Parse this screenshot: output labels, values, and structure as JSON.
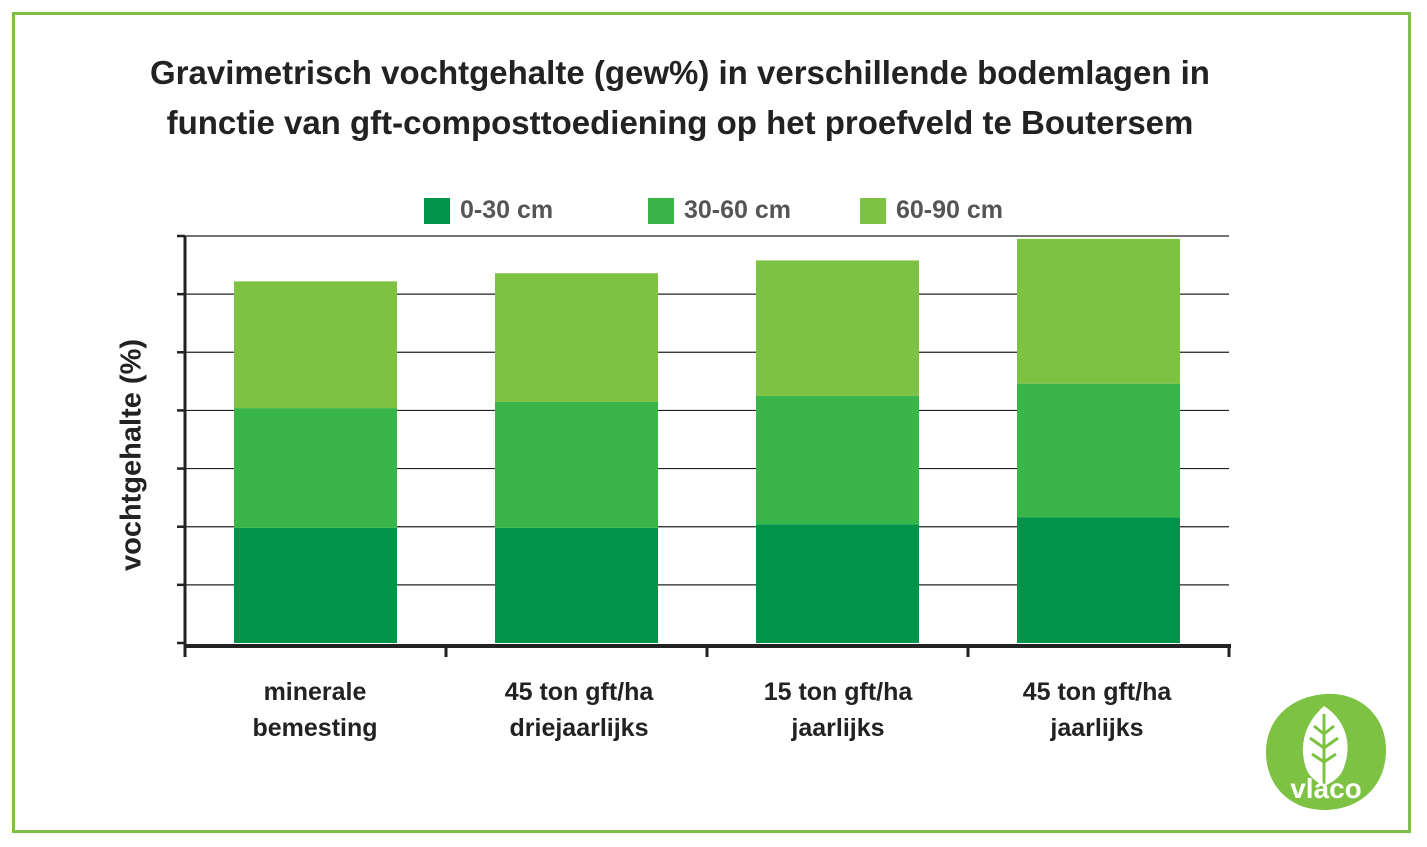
{
  "title_lines": [
    "Gravimetrisch vochtgehalte (gew%) in verschillende bodemlagen in",
    "functie van gft-composttoediening op het proefveld te Boutersem"
  ],
  "ylabel": "vochtgehalte (%)",
  "logo_text": "vlaco",
  "colors": {
    "frame": "#7dbf46",
    "series": [
      "#00934a",
      "#3ab54a",
      "#7dc242"
    ]
  },
  "chart_data": {
    "type": "bar",
    "stacked": true,
    "title": "Gravimetrisch vochtgehalte (gew%) in verschillende bodemlagen in functie van gft-composttoediening op het proefveld te Boutersem",
    "xlabel": "",
    "ylabel": "vochtgehalte (%)",
    "ylim": [
      0,
      70
    ],
    "yticks_labeled": false,
    "grid": true,
    "legend_position": "top",
    "categories": [
      [
        "minerale",
        "bemesting"
      ],
      [
        "45 ton gft/ha",
        "driejaarlijks"
      ],
      [
        "15 ton gft/ha",
        "jaarlijks"
      ],
      [
        "45 ton gft/ha",
        "jaarlijks"
      ]
    ],
    "series": [
      {
        "name": "0-30 cm",
        "values": [
          19.8,
          19.8,
          20.4,
          21.6
        ]
      },
      {
        "name": "30-60 cm",
        "values": [
          20.6,
          21.7,
          22.1,
          23.0
        ]
      },
      {
        "name": "60-90 cm",
        "values": [
          21.8,
          22.1,
          23.3,
          24.9
        ]
      }
    ]
  }
}
